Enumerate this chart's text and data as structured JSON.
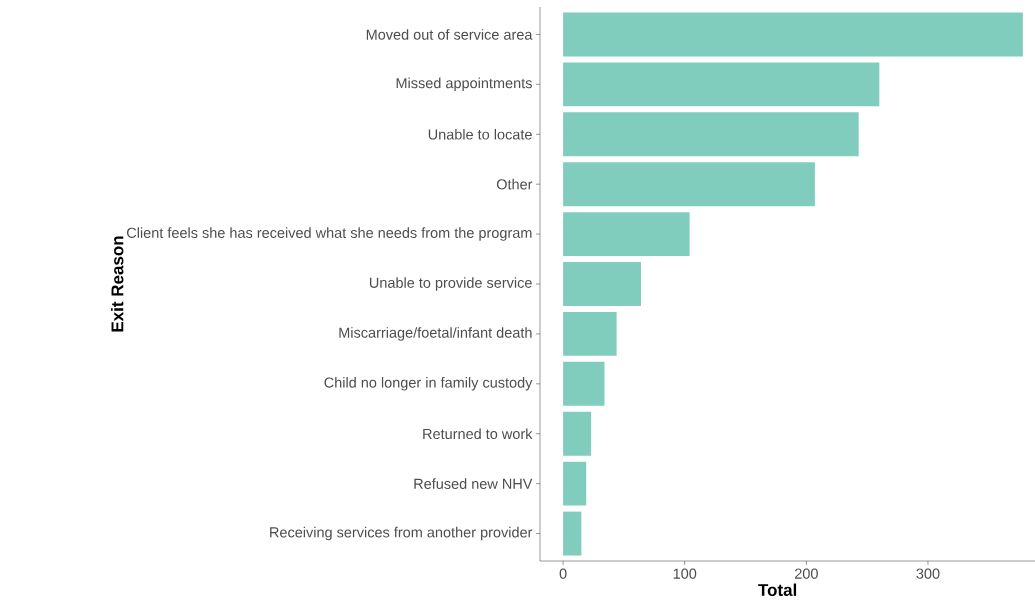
{
  "chart_data": {
    "type": "bar",
    "orientation": "horizontal",
    "xlabel": "Total",
    "ylabel": "Exit Reason",
    "categories": [
      "Moved out of service area",
      "Missed appointments",
      "Unable to locate",
      "Other",
      "Client feels she has received what she needs from the program",
      "Unable to provide service",
      "Miscarriage/foetal/infant death",
      "Child no longer in family custody",
      "Returned to work",
      "Refused new NHV",
      "Receiving services from another provider"
    ],
    "values": [
      378,
      260,
      243,
      207,
      104,
      64,
      44,
      34,
      23,
      19,
      15
    ],
    "color": "#80cdbd",
    "xlim": [
      -19,
      388
    ],
    "xticks": [
      0,
      100,
      200,
      300
    ],
    "grid": false
  }
}
